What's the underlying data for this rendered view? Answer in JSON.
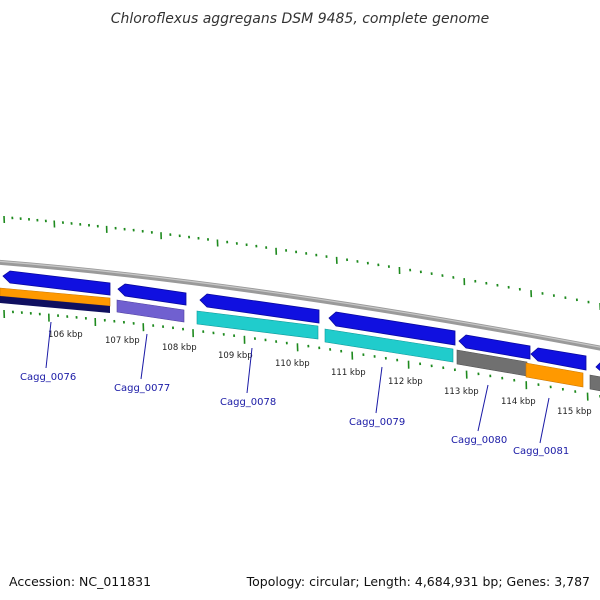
{
  "title": "Chloroflexus aggregans DSM 9485, complete genome",
  "footer": {
    "accession": "Accession: NC_011831",
    "summary": "Topology: circular; Length: 4,684,931 bp; Genes: 3,787"
  },
  "colors": {
    "background": "#ffffff",
    "backbone": "#888888",
    "tick": "#1e8a1e",
    "gene_link": "#1a1aa6",
    "cds_forward": "#1010e0",
    "rna_orange": "#ff9900",
    "cds_navy": "#101060",
    "cds_purple": "#7060d0",
    "cds_cyan": "#20cccc",
    "cds_gray": "#707070"
  },
  "scale_labels": [
    "106 kbp",
    "107 kbp",
    "108 kbp",
    "109 kbp",
    "110 kbp",
    "111 kbp",
    "112 kbp",
    "113 kbp",
    "114 kbp",
    "115 kbp"
  ],
  "gene_labels": [
    "Cagg_0076",
    "Cagg_0077",
    "Cagg_0078",
    "Cagg_0079",
    "Cagg_0080",
    "Cagg_0081"
  ]
}
